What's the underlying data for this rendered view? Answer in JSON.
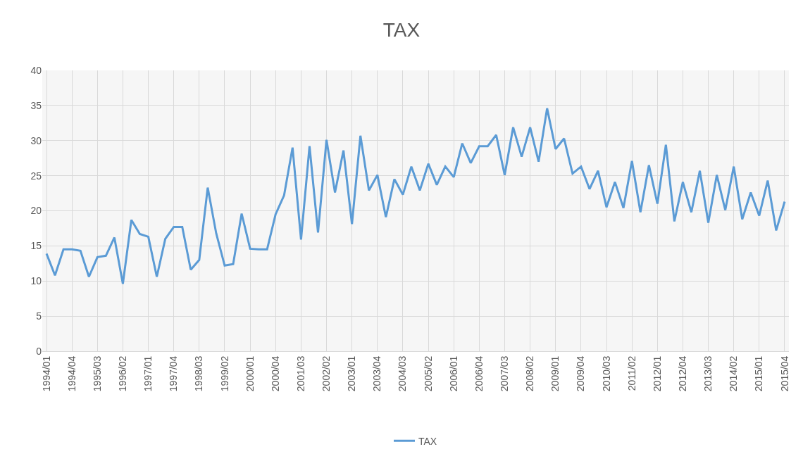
{
  "chart_data": {
    "type": "line",
    "title": "TAX",
    "categories": [
      "1994/01",
      null,
      null,
      "1994/04",
      null,
      null,
      "1995/03",
      null,
      null,
      "1996/02",
      null,
      null,
      "1997/01",
      null,
      null,
      "1997/04",
      null,
      null,
      "1998/03",
      null,
      null,
      "1999/02",
      null,
      null,
      "2000/01",
      null,
      null,
      "2000/04",
      null,
      null,
      "2001/03",
      null,
      null,
      "2002/02",
      null,
      null,
      "2003/01",
      null,
      null,
      "2003/04",
      null,
      null,
      "2004/03",
      null,
      null,
      "2005/02",
      null,
      null,
      "2006/01",
      null,
      null,
      "2006/04",
      null,
      null,
      "2007/03",
      null,
      null,
      "2008/02",
      null,
      null,
      "2009/01",
      null,
      null,
      "2009/04",
      null,
      null,
      "2010/03",
      null,
      null,
      "2011/02",
      null,
      null,
      "2012/01",
      null,
      null,
      "2012/04",
      null,
      null,
      "2013/03",
      null,
      null,
      "2014/02",
      null,
      null,
      "2015/01",
      null,
      null,
      "2015/04"
    ],
    "series": [
      {
        "name": "TAX",
        "color": "#5b9bd5",
        "values": [
          13.9,
          10.8,
          14.5,
          14.5,
          14.3,
          10.6,
          13.4,
          13.6,
          16.2,
          9.6,
          18.7,
          16.7,
          16.3,
          10.6,
          16.0,
          17.7,
          17.7,
          11.6,
          13.0,
          23.3,
          16.8,
          12.2,
          12.4,
          19.6,
          14.6,
          14.5,
          14.5,
          19.5,
          22.2,
          29.0,
          15.9,
          29.2,
          16.9,
          30.1,
          22.6,
          28.6,
          18.1,
          30.7,
          22.9,
          25.1,
          19.1,
          24.5,
          22.3,
          26.3,
          22.9,
          26.7,
          23.7,
          26.3,
          24.8,
          29.6,
          26.8,
          29.2,
          29.2,
          30.8,
          25.1,
          31.9,
          27.7,
          31.9,
          27.0,
          34.6,
          28.8,
          30.3,
          25.3,
          26.3,
          23.1,
          25.7,
          20.5,
          24.1,
          20.4,
          27.1,
          19.8,
          26.5,
          21.0,
          29.4,
          18.5,
          24.1,
          19.8,
          25.7,
          18.3,
          25.1,
          20.1,
          26.3,
          18.8,
          22.6,
          19.3,
          24.3,
          17.2,
          21.3
        ]
      }
    ],
    "ylim": [
      0,
      40
    ],
    "yticks": [
      0,
      5,
      10,
      15,
      20,
      25,
      30,
      35,
      40
    ],
    "grid": true,
    "legend": "bottom",
    "marker": "none",
    "line_style": "solid"
  }
}
